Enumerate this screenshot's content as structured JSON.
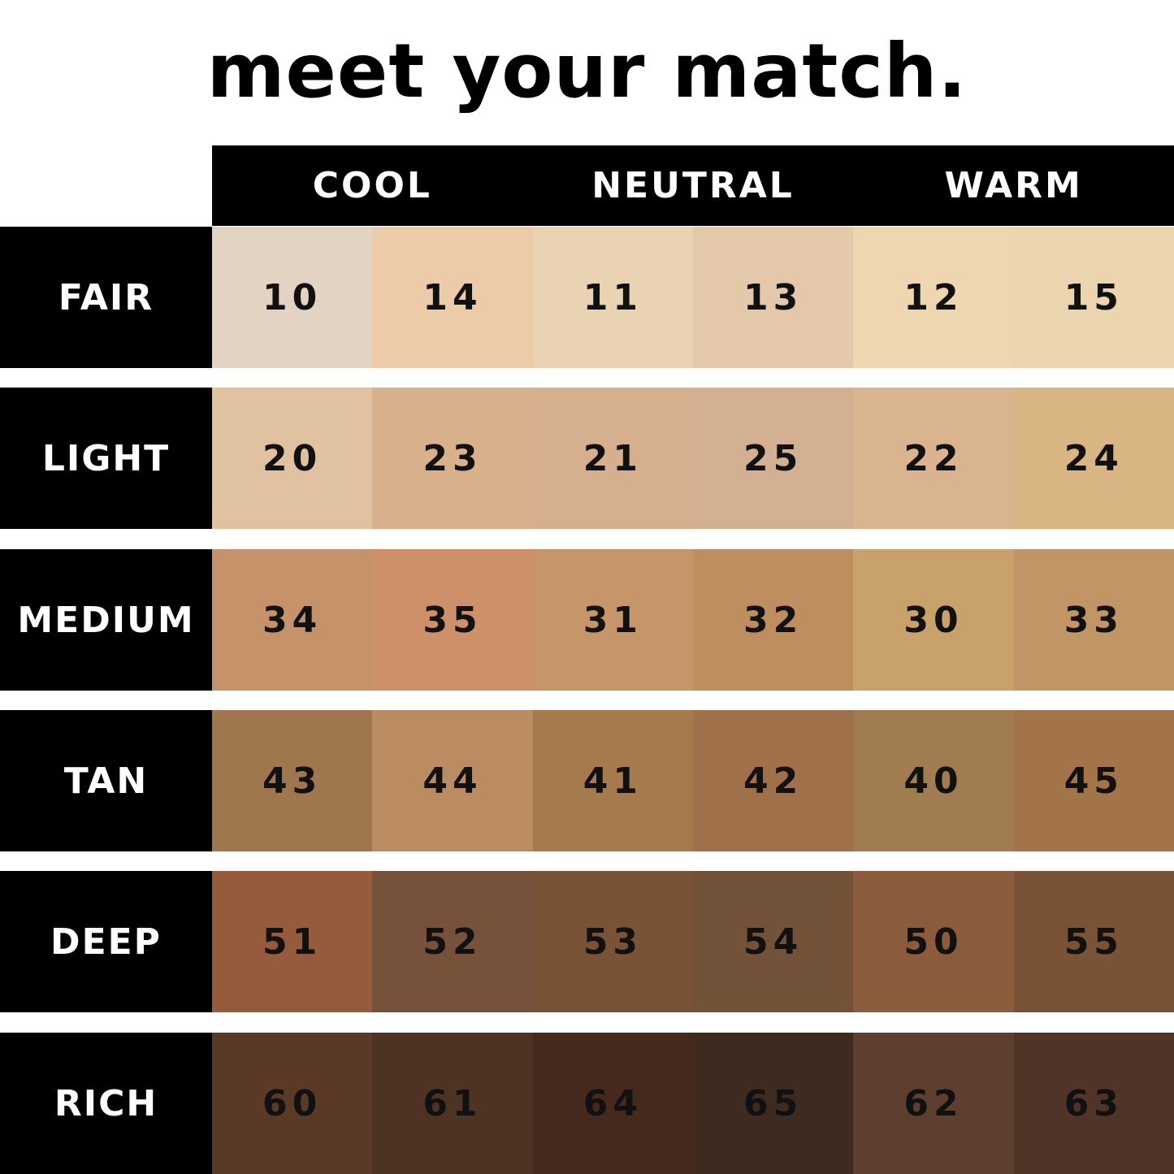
{
  "title": "meet your match.",
  "columns": [
    "COOL",
    "NEUTRAL",
    "WARM"
  ],
  "rows": [
    {
      "label": "FAIR",
      "shades": [
        {
          "code": "10",
          "color": "#E2D3C3"
        },
        {
          "code": "14",
          "color": "#EBCBA8"
        },
        {
          "code": "11",
          "color": "#EAD3B2"
        },
        {
          "code": "13",
          "color": "#E3C9AA"
        },
        {
          "code": "12",
          "color": "#EED6B1"
        },
        {
          "code": "15",
          "color": "#EBD5AE"
        }
      ]
    },
    {
      "label": "LIGHT",
      "shades": [
        {
          "code": "20",
          "color": "#E0C1A0"
        },
        {
          "code": "23",
          "color": "#D8B08C"
        },
        {
          "code": "21",
          "color": "#D6B08E"
        },
        {
          "code": "25",
          "color": "#D3B092"
        },
        {
          "code": "22",
          "color": "#D9B48E"
        },
        {
          "code": "24",
          "color": "#D9B584"
        }
      ]
    },
    {
      "label": "MEDIUM",
      "shades": [
        {
          "code": "34",
          "color": "#C6926A"
        },
        {
          "code": "35",
          "color": "#CD9068"
        },
        {
          "code": "31",
          "color": "#C6956A"
        },
        {
          "code": "32",
          "color": "#BE8E5E"
        },
        {
          "code": "30",
          "color": "#C9A16A"
        },
        {
          "code": "33",
          "color": "#C19565"
        }
      ]
    },
    {
      "label": "TAN",
      "shades": [
        {
          "code": "43",
          "color": "#A0764E"
        },
        {
          "code": "44",
          "color": "#BB8B62"
        },
        {
          "code": "41",
          "color": "#A57A4D"
        },
        {
          "code": "42",
          "color": "#A0704B"
        },
        {
          "code": "40",
          "color": "#A07C50"
        },
        {
          "code": "45",
          "color": "#A3734A"
        }
      ]
    },
    {
      "label": "DEEP",
      "shades": [
        {
          "code": "51",
          "color": "#955B3A"
        },
        {
          "code": "52",
          "color": "#76523A"
        },
        {
          "code": "53",
          "color": "#7A5236"
        },
        {
          "code": "54",
          "color": "#73523A"
        },
        {
          "code": "50",
          "color": "#8A5C3B"
        },
        {
          "code": "55",
          "color": "#7A5235"
        }
      ]
    },
    {
      "label": "RICH",
      "shades": [
        {
          "code": "60",
          "color": "#5A3A26"
        },
        {
          "code": "61",
          "color": "#4E3325"
        },
        {
          "code": "64",
          "color": "#45291C"
        },
        {
          "code": "65",
          "color": "#3E2B20"
        },
        {
          "code": "62",
          "color": "#5C3F2F"
        },
        {
          "code": "63",
          "color": "#4F3427"
        }
      ]
    }
  ]
}
